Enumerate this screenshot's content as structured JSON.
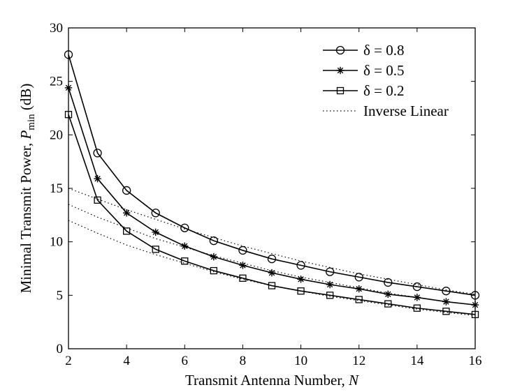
{
  "chart_data": {
    "type": "line",
    "xlabel": "Transmit Antenna Number, N",
    "ylabel": "Minimal Transmit Power, P_min (dB)",
    "xlim": [
      2,
      16
    ],
    "ylim": [
      0,
      30
    ],
    "xticks": [
      2,
      4,
      6,
      8,
      10,
      12,
      14,
      16
    ],
    "yticks": [
      0,
      5,
      10,
      15,
      20,
      25,
      30
    ],
    "grid": false,
    "legend_position": "top-right",
    "x": [
      2,
      3,
      4,
      5,
      6,
      7,
      8,
      9,
      10,
      11,
      12,
      13,
      14,
      15,
      16
    ],
    "series": [
      {
        "name": "δ = 0.8",
        "marker": "circle",
        "style": "solid",
        "values": [
          27.5,
          18.3,
          14.8,
          12.7,
          11.3,
          10.1,
          9.2,
          8.4,
          7.8,
          7.2,
          6.7,
          6.2,
          5.8,
          5.4,
          5.0
        ]
      },
      {
        "name": "δ = 0.5",
        "marker": "star",
        "style": "solid",
        "values": [
          24.4,
          15.9,
          12.7,
          10.9,
          9.6,
          8.6,
          7.8,
          7.1,
          6.5,
          6.0,
          5.6,
          5.1,
          4.8,
          4.4,
          4.1
        ]
      },
      {
        "name": "δ = 0.2",
        "marker": "square",
        "style": "solid",
        "values": [
          21.9,
          13.9,
          11.0,
          9.3,
          8.2,
          7.3,
          6.6,
          5.9,
          5.4,
          5.0,
          4.6,
          4.2,
          3.8,
          3.5,
          3.2
        ]
      },
      {
        "name": "Inverse Linear",
        "marker": "none",
        "style": "dotted",
        "curves": [
          [
            15.0,
            14.0,
            13.0,
            12.1,
            11.2,
            10.4,
            9.6,
            8.9,
            8.2,
            7.6,
            7.0,
            6.5,
            6.0,
            5.5,
            5.1
          ],
          [
            13.5,
            12.3,
            11.3,
            10.3,
            9.5,
            8.7,
            8.0,
            7.3,
            6.7,
            6.2,
            5.7,
            5.2,
            4.8,
            4.4,
            4.1
          ],
          [
            12.0,
            10.8,
            9.7,
            8.8,
            8.0,
            7.2,
            6.5,
            5.9,
            5.4,
            4.9,
            4.5,
            4.1,
            3.7,
            3.4,
            3.1
          ]
        ]
      }
    ]
  }
}
